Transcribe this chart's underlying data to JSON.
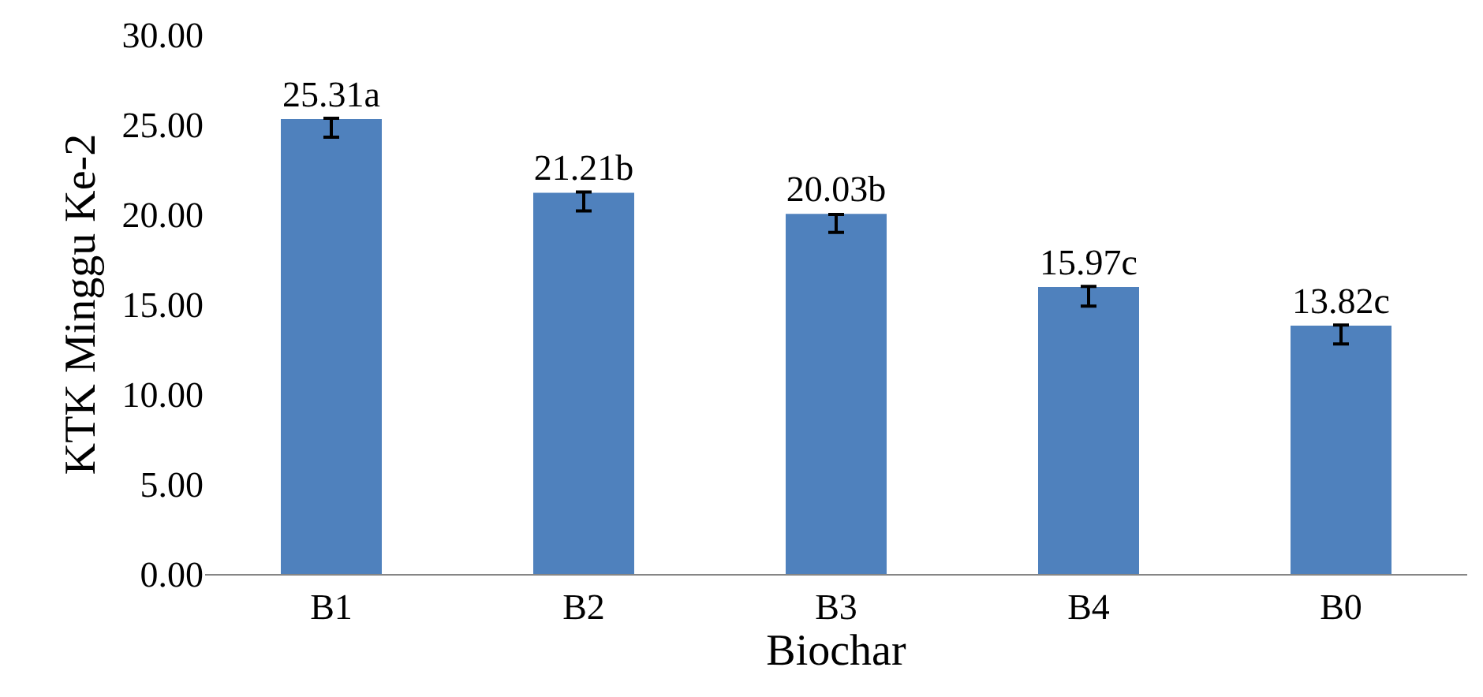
{
  "chart_data": {
    "type": "bar",
    "xlabel": "Biochar",
    "ylabel": "KTK Minggu Ke-2",
    "categories": [
      "B1",
      "B2",
      "B3",
      "B4",
      "B0"
    ],
    "values": [
      25.31,
      21.21,
      20.03,
      15.97,
      13.82
    ],
    "value_labels": [
      "25.31a",
      "21.21b",
      "20.03b",
      "15.97c",
      "13.82c"
    ],
    "errors": [
      [
        24.3,
        25.35
      ],
      [
        20.2,
        21.25
      ],
      [
        19.0,
        20.0
      ],
      [
        14.9,
        16.0
      ],
      [
        12.8,
        13.85
      ]
    ],
    "color": "#4f81bd",
    "ylim": [
      0,
      30
    ],
    "yticks": [
      {
        "value": 0,
        "label": "0.00"
      },
      {
        "value": 5,
        "label": "5.00"
      },
      {
        "value": 10,
        "label": "10.00"
      },
      {
        "value": 15,
        "label": "15.00"
      },
      {
        "value": 20,
        "label": "20.00"
      },
      {
        "value": 25,
        "label": "25.00"
      },
      {
        "value": 30,
        "label": "30.00"
      }
    ],
    "legend": false
  }
}
